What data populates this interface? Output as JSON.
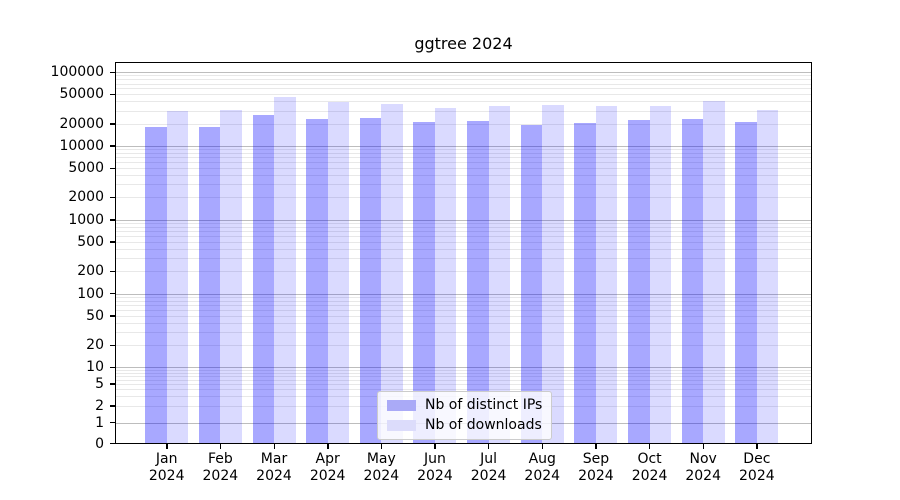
{
  "chart_data": {
    "type": "bar",
    "title": "ggtree 2024",
    "categories": [
      "Jan",
      "Feb",
      "Mar",
      "Apr",
      "May",
      "Jun",
      "Jul",
      "Aug",
      "Sep",
      "Oct",
      "Nov",
      "Dec"
    ],
    "x_tick_second_line": "2024",
    "series": [
      {
        "name": "Nb of distinct IPs",
        "fill": "rgba(0,0,255,0.34)",
        "swatch_color": "#aaaaf7",
        "values": [
          18000,
          18200,
          26200,
          23400,
          23800,
          20800,
          21700,
          19200,
          20600,
          22700,
          23400,
          20800
        ]
      },
      {
        "name": "Nb of downloads",
        "fill": "rgba(0,0,255,0.145)",
        "swatch_color": "#dcdcfb",
        "values": [
          30000,
          30500,
          46000,
          39000,
          37500,
          32300,
          35000,
          35500,
          34500,
          35000,
          40000,
          30800
        ]
      }
    ],
    "y_axis": {
      "scale": "symlog",
      "tick_labels": [
        "100000",
        "50000",
        "20000",
        "10000",
        "5000",
        "2000",
        "1000",
        "500",
        "200",
        "100",
        "50",
        "20",
        "10",
        "5",
        "2",
        "1",
        "0"
      ],
      "tick_values": [
        100000,
        50000,
        20000,
        10000,
        5000,
        2000,
        1000,
        500,
        200,
        100,
        50,
        20,
        10,
        5,
        2,
        1,
        0
      ],
      "ylim": [
        0,
        137000
      ]
    },
    "grid": {
      "on": true,
      "major_values": [
        1,
        10,
        100,
        1000,
        10000,
        100000
      ],
      "minor_decades": [
        1,
        10,
        100,
        1000,
        10000
      ],
      "major_color": "#bdbdbd",
      "minor_color": "#e8e8e8"
    },
    "legend": {
      "position": "lower center inside",
      "entries": [
        "Nb of distinct IPs",
        "Nb of downloads"
      ]
    }
  },
  "colors": {
    "background": "#ffffff",
    "axis": "#000000",
    "text": "#000000"
  }
}
